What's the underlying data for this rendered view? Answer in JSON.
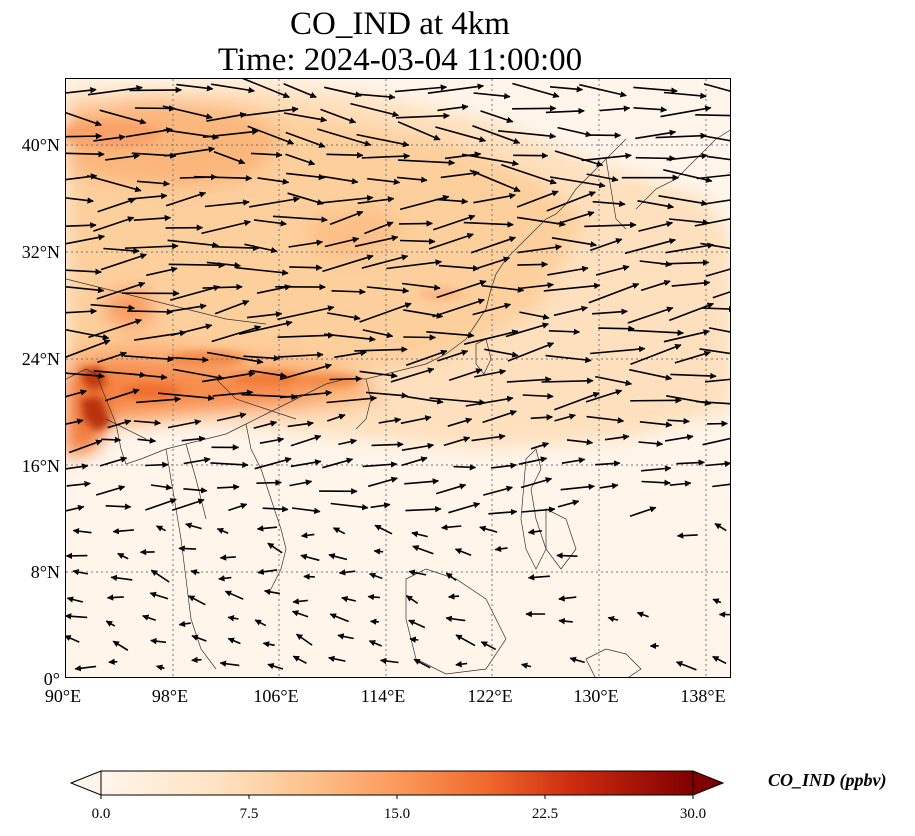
{
  "title": "CO_IND at 4km",
  "subtitle": "Time: 2024-03-04 11:00:00",
  "map": {
    "lon_range": [
      90,
      140
    ],
    "lat_range": [
      0,
      45
    ],
    "x_ticks": [
      "90°E",
      "98°E",
      "106°E",
      "114°E",
      "122°E",
      "130°E",
      "138°E"
    ],
    "y_ticks": [
      "40°N",
      "32°N",
      "24°N",
      "16°N",
      "8°N",
      "0°"
    ],
    "gridlines": true,
    "gridline_style": "dotted"
  },
  "colorbar": {
    "label": "CO_IND (ppbv)",
    "min": 0.0,
    "max": 30.0,
    "ticks": [
      "0.0",
      "7.5",
      "15.0",
      "22.5",
      "30.0"
    ],
    "extend": "both",
    "colormap": [
      "#fff5eb",
      "#fdd7aa",
      "#fda762",
      "#f16913",
      "#d94801",
      "#a63603",
      "#7f2704"
    ]
  },
  "colors": {
    "background": "#fff5eb",
    "coast": "#333333",
    "arrow": "#000000"
  }
}
